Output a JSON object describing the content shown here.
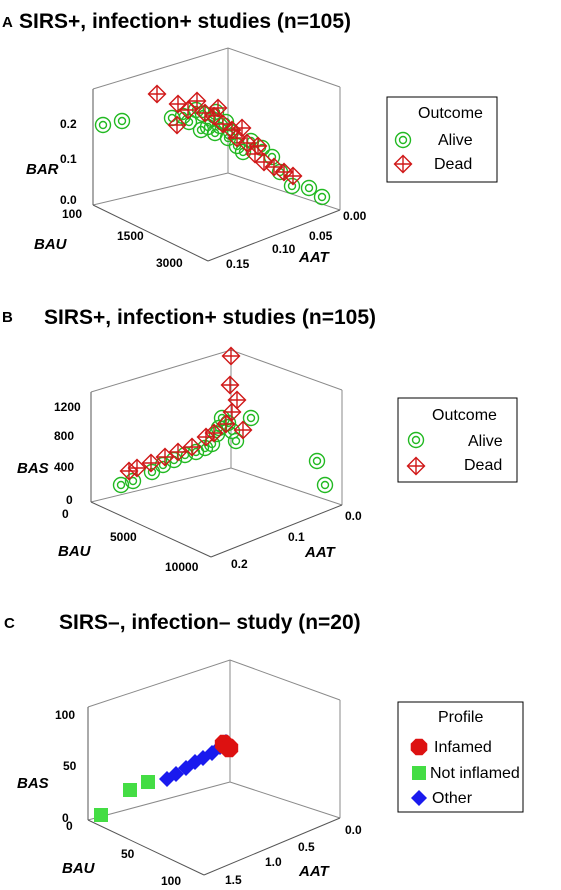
{
  "chart_data": [
    {
      "type": "scatter",
      "panel": "A",
      "title": "SIRS+, infection+ studies (n=105)",
      "axes": {
        "x": {
          "label": "AAT",
          "ticks": [
            "0.00",
            "0.05",
            "0.10",
            "0.15"
          ],
          "range": [
            0.0,
            0.16
          ]
        },
        "y": {
          "label": "BAU",
          "ticks": [
            "100",
            "1500",
            "3000"
          ],
          "range": [
            100,
            3000
          ]
        },
        "z": {
          "label": "BAR",
          "ticks": [
            "0.0",
            "0.1",
            "0.2"
          ],
          "range": [
            0.0,
            0.25
          ]
        }
      },
      "legend": {
        "title": "Outcome",
        "entries": [
          "Alive",
          "Dead"
        ],
        "placement": "right"
      },
      "series": [
        {
          "name": "Alive",
          "color": "#22b922",
          "marker": "circle-target"
        },
        {
          "name": "Dead",
          "color": "#d01818",
          "marker": "diamond-cross"
        }
      ]
    },
    {
      "type": "scatter",
      "panel": "B",
      "title": "SIRS+, infection+ studies (n=105)",
      "axes": {
        "x": {
          "label": "AAT",
          "ticks": [
            "0.0",
            "0.1",
            "0.2"
          ],
          "range": [
            0.0,
            0.2
          ]
        },
        "y": {
          "label": "BAU",
          "ticks": [
            "0",
            "5000",
            "10000"
          ],
          "range": [
            0,
            10000
          ]
        },
        "z": {
          "label": "BAS",
          "ticks": [
            "0",
            "400",
            "800",
            "1200"
          ],
          "range": [
            0,
            1300
          ]
        }
      },
      "legend": {
        "title": "Outcome",
        "entries": [
          "Alive",
          "Dead"
        ],
        "placement": "right"
      },
      "series": [
        {
          "name": "Alive",
          "color": "#22b922",
          "marker": "circle-target"
        },
        {
          "name": "Dead",
          "color": "#d01818",
          "marker": "diamond-cross"
        }
      ]
    },
    {
      "type": "scatter",
      "panel": "C",
      "title": "SIRS–, infection– study (n=20)",
      "axes": {
        "x": {
          "label": "AAT",
          "ticks": [
            "0.0",
            "0.5",
            "1.0",
            "1.5"
          ],
          "range": [
            0.0,
            1.6
          ]
        },
        "y": {
          "label": "BAU",
          "ticks": [
            "0",
            "50",
            "100"
          ],
          "range": [
            0,
            100
          ]
        },
        "z": {
          "label": "BAS",
          "ticks": [
            "0",
            "50",
            "100"
          ],
          "range": [
            0,
            100
          ]
        }
      },
      "legend": {
        "title": "Profile",
        "entries": [
          "Infamed",
          "Not inflamed",
          "Other"
        ],
        "placement": "right"
      },
      "series": [
        {
          "name": "Infamed",
          "color": "#dd1111",
          "marker": "octagon"
        },
        {
          "name": "Not inflamed",
          "color": "#44dd44",
          "marker": "square"
        },
        {
          "name": "Other",
          "color": "#1a1aee",
          "marker": "diamond"
        }
      ]
    }
  ]
}
